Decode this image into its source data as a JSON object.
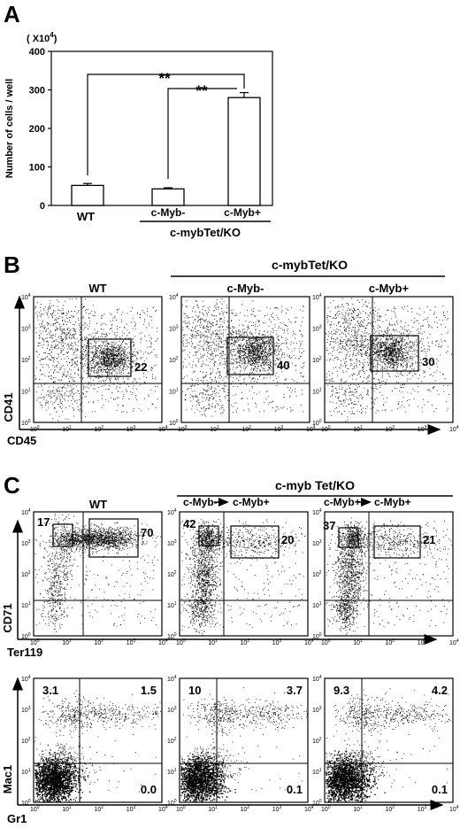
{
  "panels": {
    "A": {
      "letter": "A",
      "y_unit": "( X10",
      "y_unit_exp": "4",
      "y_unit_close": ")",
      "ylabel": "Number of cells / well",
      "yticks": [
        "0",
        "100",
        "200",
        "300",
        "400"
      ],
      "bar_labels": [
        "WT",
        "c-Myb-",
        "c-Myb+"
      ],
      "group_label": "c-mybTet/KO",
      "sig": [
        "**",
        "**"
      ]
    },
    "B": {
      "letter": "B",
      "group_label": "c-mybTet/KO",
      "titles": [
        "WT",
        "c-Myb-",
        "c-Myb+"
      ],
      "gate_values": [
        "22",
        "40",
        "30"
      ],
      "xlabel": "CD45",
      "ylabel": "CD41"
    },
    "C": {
      "letter": "C",
      "group_label": "c-myb Tet/KO",
      "titles": [
        "WT"
      ],
      "arrow_labels": [
        {
          "from": "c-Myb-",
          "to": "c-Myb+"
        },
        {
          "from": "c-Myb+",
          "to": "c-Myb+"
        }
      ],
      "top_row": {
        "xlabel": "Ter119",
        "ylabel": "CD71",
        "left_gate": [
          "17",
          "42",
          "37"
        ],
        "right_gate": [
          "70",
          "20",
          "21"
        ]
      },
      "bottom_row": {
        "xlabel": "Gr1",
        "ylabel": "Mac1",
        "ul": [
          "3.1",
          "10",
          "9.3"
        ],
        "ur": [
          "1.5",
          "3.7",
          "4.2"
        ],
        "lr": [
          "0.0",
          "0.1",
          "0.1"
        ]
      }
    },
    "log_ticks": [
      "0",
      "1",
      "2",
      "3",
      "4"
    ],
    "log_base": "10"
  },
  "chart_data": [
    {
      "type": "bar",
      "panel": "A",
      "categories": [
        "WT",
        "c-Myb-",
        "c-Myb+"
      ],
      "values": [
        52,
        43,
        280
      ],
      "errors": [
        5,
        3,
        13
      ],
      "ylabel": "Number of cells / well",
      "ylim": [
        0,
        400
      ],
      "unit": "x10^4",
      "significance": [
        {
          "between": [
            "WT",
            "c-Myb+"
          ],
          "label": "**"
        },
        {
          "between": [
            "c-Myb-",
            "c-Myb+"
          ],
          "label": "**"
        }
      ]
    },
    {
      "type": "scatter",
      "panel": "B",
      "xlabel": "CD45",
      "ylabel": "CD41",
      "scale": "log",
      "xlim": [
        1,
        10000
      ],
      "ylim": [
        1,
        10000
      ],
      "plots": [
        {
          "title": "WT",
          "gate_percent": 22
        },
        {
          "title": "c-Myb-",
          "gate_percent": 40
        },
        {
          "title": "c-Myb+",
          "gate_percent": 30
        }
      ]
    },
    {
      "type": "scatter",
      "panel": "C-top",
      "xlabel": "Ter119",
      "ylabel": "CD71",
      "scale": "log",
      "plots": [
        {
          "condition": "WT",
          "gates": [
            17,
            70
          ]
        },
        {
          "condition": "c-Myb- ► c-Myb+",
          "gates": [
            42,
            20
          ]
        },
        {
          "condition": "c-Myb+ ► c-Myb+",
          "gates": [
            37,
            21
          ]
        }
      ]
    },
    {
      "type": "scatter",
      "panel": "C-bottom",
      "xlabel": "Gr1",
      "ylabel": "Mac1",
      "scale": "log",
      "plots": [
        {
          "condition": "WT",
          "quadrants": {
            "UL": 3.1,
            "UR": 1.5,
            "LR": 0.0
          }
        },
        {
          "condition": "c-Myb- ► c-Myb+",
          "quadrants": {
            "UL": 10,
            "UR": 3.7,
            "LR": 0.1
          }
        },
        {
          "condition": "c-Myb+ ► c-Myb+",
          "quadrants": {
            "UL": 9.3,
            "UR": 4.2,
            "LR": 0.1
          }
        }
      ]
    }
  ]
}
